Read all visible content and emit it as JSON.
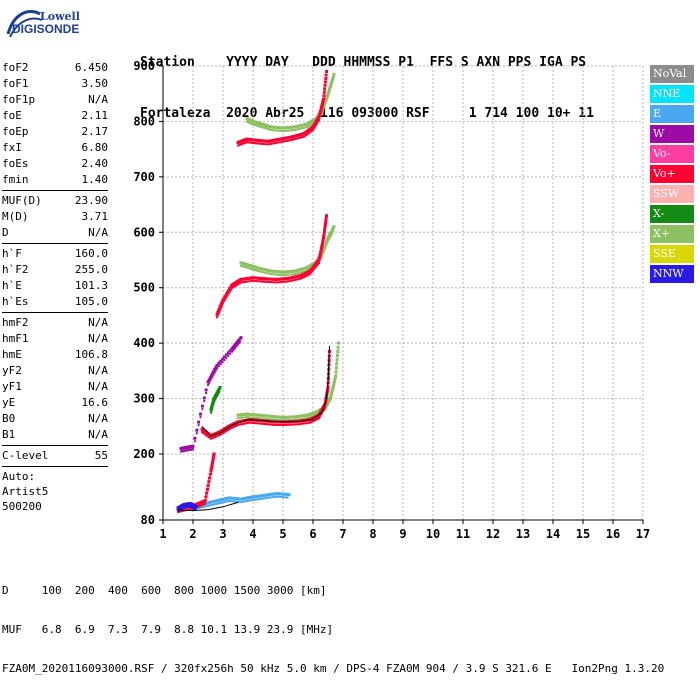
{
  "logo": {
    "line1": "Lowell",
    "line2": "DIGISONDE"
  },
  "header": {
    "line1": "Station    YYYY DAY   DDD HHMMSS P1  FFS S AXN PPS IGA PS",
    "line2": "Fortaleza  2020 Abr25  116 093000 RSF     1 714 100 10+ 11"
  },
  "params": {
    "group1": [
      {
        "k": "foF2",
        "v": "6.450"
      },
      {
        "k": "foF1",
        "v": "3.50"
      },
      {
        "k": "foF1p",
        "v": "N/A"
      },
      {
        "k": "foE",
        "v": "2.11"
      },
      {
        "k": "foEp",
        "v": "2.17"
      },
      {
        "k": "fxI",
        "v": "6.80"
      },
      {
        "k": "foEs",
        "v": "2.40"
      },
      {
        "k": "fmin",
        "v": "1.40"
      }
    ],
    "group2": [
      {
        "k": "MUF(D)",
        "v": "23.90"
      },
      {
        "k": "M(D)",
        "v": "3.71"
      },
      {
        "k": "D",
        "v": "N/A"
      }
    ],
    "group3": [
      {
        "k": "h`F",
        "v": "160.0"
      },
      {
        "k": "h`F2",
        "v": "255.0"
      },
      {
        "k": "h`E",
        "v": "101.3"
      },
      {
        "k": "h`Es",
        "v": "105.0"
      }
    ],
    "group4": [
      {
        "k": "hmF2",
        "v": "N/A"
      },
      {
        "k": "hmF1",
        "v": "N/A"
      },
      {
        "k": "hmE",
        "v": "106.8"
      },
      {
        "k": "yF2",
        "v": "N/A"
      },
      {
        "k": "yF1",
        "v": "N/A"
      },
      {
        "k": "yE",
        "v": "16.6"
      },
      {
        "k": "B0",
        "v": "N/A"
      },
      {
        "k": "B1",
        "v": "N/A"
      }
    ],
    "group5": [
      {
        "k": "C-level",
        "v": "55"
      }
    ],
    "auto": [
      "Auto:",
      "Artist5",
      "500200"
    ]
  },
  "legend": [
    {
      "label": "NoVal",
      "color": "#8c8c8c"
    },
    {
      "label": "NNE",
      "color": "#00e5ff"
    },
    {
      "label": "E",
      "color": "#4aa8f0"
    },
    {
      "label": "W",
      "color": "#9e0aa6"
    },
    {
      "label": "Vo-",
      "color": "#ff3ca0"
    },
    {
      "label": "Vo+",
      "color": "#ff0033"
    },
    {
      "label": "SSW",
      "color": "#ffb0b0"
    },
    {
      "label": "X-",
      "color": "#138a13"
    },
    {
      "label": "X+",
      "color": "#8cc060"
    },
    {
      "label": "SSE",
      "color": "#d8d800"
    },
    {
      "label": "NNW",
      "color": "#2a1ae6"
    }
  ],
  "chart_data": {
    "type": "scatter",
    "title": "",
    "xlabel": "",
    "ylabel": "",
    "xlim": [
      1,
      17
    ],
    "ylim": [
      80,
      900
    ],
    "xticks": [
      "1",
      "2",
      "3",
      "4",
      "5",
      "6",
      "7",
      "8",
      "9",
      "10",
      "11",
      "12",
      "13",
      "14",
      "15",
      "16",
      "17"
    ],
    "yticks": [
      "80",
      "200",
      "300",
      "400",
      "500",
      "600",
      "700",
      "800",
      "900"
    ],
    "ytick_values": [
      80,
      200,
      300,
      400,
      500,
      600,
      700,
      800,
      900
    ],
    "grid": true,
    "traces": [
      {
        "name": "X+",
        "color": "#8cc060",
        "points": [
          [
            3.8,
            805
          ],
          [
            4.0,
            800
          ],
          [
            4.3,
            795
          ],
          [
            4.6,
            790
          ],
          [
            5.0,
            788
          ],
          [
            5.4,
            790
          ],
          [
            5.8,
            795
          ],
          [
            6.1,
            805
          ],
          [
            6.3,
            820
          ],
          [
            6.5,
            850
          ],
          [
            6.7,
            885
          ]
        ]
      },
      {
        "name": "Vo+",
        "color": "#ff0033",
        "points": [
          [
            3.5,
            762
          ],
          [
            3.8,
            768
          ],
          [
            4.1,
            766
          ],
          [
            4.5,
            764
          ],
          [
            4.9,
            768
          ],
          [
            5.3,
            772
          ],
          [
            5.7,
            778
          ],
          [
            6.0,
            790
          ],
          [
            6.2,
            808
          ],
          [
            6.35,
            840
          ],
          [
            6.45,
            890
          ]
        ]
      },
      {
        "name": "X+",
        "color": "#8cc060",
        "points": [
          [
            3.6,
            545
          ],
          [
            3.9,
            540
          ],
          [
            4.2,
            535
          ],
          [
            4.6,
            530
          ],
          [
            5.0,
            528
          ],
          [
            5.4,
            530
          ],
          [
            5.8,
            536
          ],
          [
            6.1,
            546
          ],
          [
            6.3,
            562
          ],
          [
            6.5,
            590
          ],
          [
            6.7,
            610
          ]
        ]
      },
      {
        "name": "Vo+",
        "color": "#ff0033",
        "points": [
          [
            2.8,
            452
          ],
          [
            3.0,
            478
          ],
          [
            3.3,
            505
          ],
          [
            3.6,
            515
          ],
          [
            4.0,
            518
          ],
          [
            4.4,
            516
          ],
          [
            4.8,
            515
          ],
          [
            5.2,
            517
          ],
          [
            5.6,
            522
          ],
          [
            5.9,
            530
          ],
          [
            6.2,
            550
          ],
          [
            6.35,
            590
          ],
          [
            6.45,
            630
          ]
        ]
      },
      {
        "name": "X+",
        "color": "#8cc060",
        "points": [
          [
            3.5,
            270
          ],
          [
            3.8,
            272
          ],
          [
            4.2,
            270
          ],
          [
            4.6,
            268
          ],
          [
            5.0,
            266
          ],
          [
            5.4,
            267
          ],
          [
            5.8,
            270
          ],
          [
            6.1,
            275
          ],
          [
            6.4,
            285
          ],
          [
            6.6,
            305
          ],
          [
            6.75,
            340
          ],
          [
            6.85,
            400
          ]
        ]
      },
      {
        "name": "Vo+",
        "color": "#ff0033",
        "points": [
          [
            2.3,
            245
          ],
          [
            2.6,
            233
          ],
          [
            2.9,
            240
          ],
          [
            3.2,
            250
          ],
          [
            3.5,
            258
          ],
          [
            3.9,
            262
          ],
          [
            4.3,
            260
          ],
          [
            4.7,
            258
          ],
          [
            5.1,
            258
          ],
          [
            5.5,
            259
          ],
          [
            5.9,
            262
          ],
          [
            6.2,
            270
          ],
          [
            6.4,
            290
          ],
          [
            6.5,
            320
          ],
          [
            6.55,
            385
          ]
        ]
      },
      {
        "name": "E",
        "color": "#4aa8f0",
        "points": [
          [
            2.0,
            105
          ],
          [
            2.4,
            110
          ],
          [
            2.8,
            115
          ],
          [
            3.2,
            120
          ],
          [
            3.6,
            118
          ],
          [
            4.0,
            122
          ],
          [
            4.4,
            125
          ],
          [
            4.8,
            128
          ],
          [
            5.2,
            126
          ]
        ]
      },
      {
        "name": "Vo+",
        "color": "#ff0033",
        "points": [
          [
            1.5,
            100
          ],
          [
            1.8,
            104
          ],
          [
            2.1,
            108
          ],
          [
            2.4,
            115
          ],
          [
            2.6,
            170
          ],
          [
            2.7,
            200
          ]
        ]
      },
      {
        "name": "W",
        "color": "#9e0aa6",
        "points": [
          [
            1.6,
            210
          ],
          [
            1.8,
            212
          ],
          [
            2.0,
            214
          ],
          [
            2.5,
            330
          ],
          [
            2.8,
            360
          ],
          [
            3.3,
            390
          ],
          [
            3.6,
            410
          ]
        ]
      },
      {
        "name": "X-",
        "color": "#138a13",
        "points": [
          [
            2.6,
            280
          ],
          [
            2.7,
            300
          ],
          [
            2.9,
            320
          ]
        ]
      },
      {
        "name": "NNW",
        "color": "#2a1ae6",
        "points": [
          [
            1.5,
            102
          ],
          [
            1.7,
            108
          ],
          [
            1.9,
            110
          ],
          [
            2.1,
            104
          ]
        ]
      }
    ],
    "fit_lines": [
      {
        "points": [
          [
            2.3,
            250
          ],
          [
            2.6,
            232
          ],
          [
            2.9,
            238
          ],
          [
            3.3,
            252
          ],
          [
            3.8,
            262
          ],
          [
            4.4,
            260
          ],
          [
            5.0,
            258
          ],
          [
            5.6,
            259
          ],
          [
            6.0,
            263
          ],
          [
            6.3,
            275
          ],
          [
            6.45,
            300
          ],
          [
            6.5,
            330
          ],
          [
            6.55,
            395
          ]
        ]
      },
      {
        "points": [
          [
            1.5,
            98
          ],
          [
            2.0,
            97
          ],
          [
            2.5,
            99
          ],
          [
            3.0,
            104
          ],
          [
            3.5,
            112
          ]
        ]
      }
    ]
  },
  "footer": {
    "line1": "D     100  200  400  600  800 1000 1500 3000 [km]",
    "line2": "MUF   6.8  6.9  7.3  7.9  8.8 10.1 13.9 23.9 [MHz]",
    "line3": "FZA0M_2020116093000.RSF / 320fx256h 50 kHz 5.0 km / DPS-4 FZA0M 904 / 3.9 S 321.6 E   Ion2Png 1.3.20"
  }
}
